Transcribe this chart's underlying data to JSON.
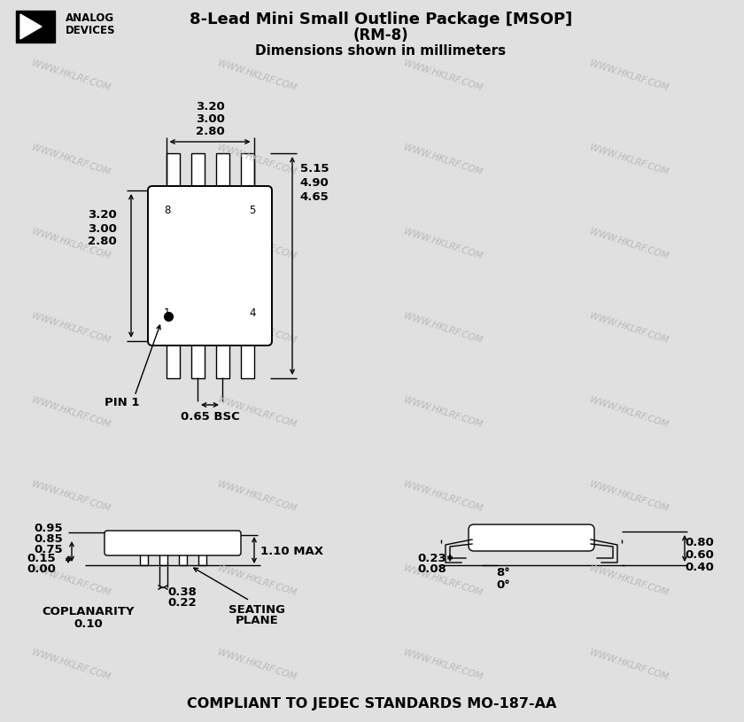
{
  "title_line1": "8-Lead Mini Small Outline Package [MSOP]",
  "title_line2": "(RM-8)",
  "title_line3": "Dimensions shown in millimeters",
  "bg_color": "#e0e0e0",
  "fg_color": "#000000",
  "watermark": "WWW.HKLRF.COM",
  "jedec_text": "COMPLIANT TO JEDEC STANDARDS MO-187-AA",
  "top_dims": [
    "3.20",
    "3.00",
    "2.80"
  ],
  "left_dims": [
    "3.20",
    "3.00",
    "2.80"
  ],
  "right_dims": [
    "5.15",
    "4.90",
    "4.65"
  ],
  "pin_pitch": "0.65 BSC",
  "pin1_label": "PIN 1",
  "corner_pins": [
    "8",
    "5",
    "1",
    "4"
  ],
  "bot_dims_left": [
    "0.95",
    "0.85",
    "0.75"
  ],
  "bot_dims_left2": [
    "0.15",
    "0.00"
  ],
  "bot_dims_mid": [
    "0.38",
    "0.22"
  ],
  "height_max": "1.10 MAX",
  "coplan_label": "COPLANARITY",
  "coplan_val": "0.10",
  "seating_label": "SEATING",
  "seating_label2": "PLANE",
  "side_dims_left": [
    "0.23",
    "0.08"
  ],
  "side_angle": [
    "8°",
    "0°"
  ],
  "side_dims_right": [
    "0.80",
    "0.60",
    "0.40"
  ]
}
